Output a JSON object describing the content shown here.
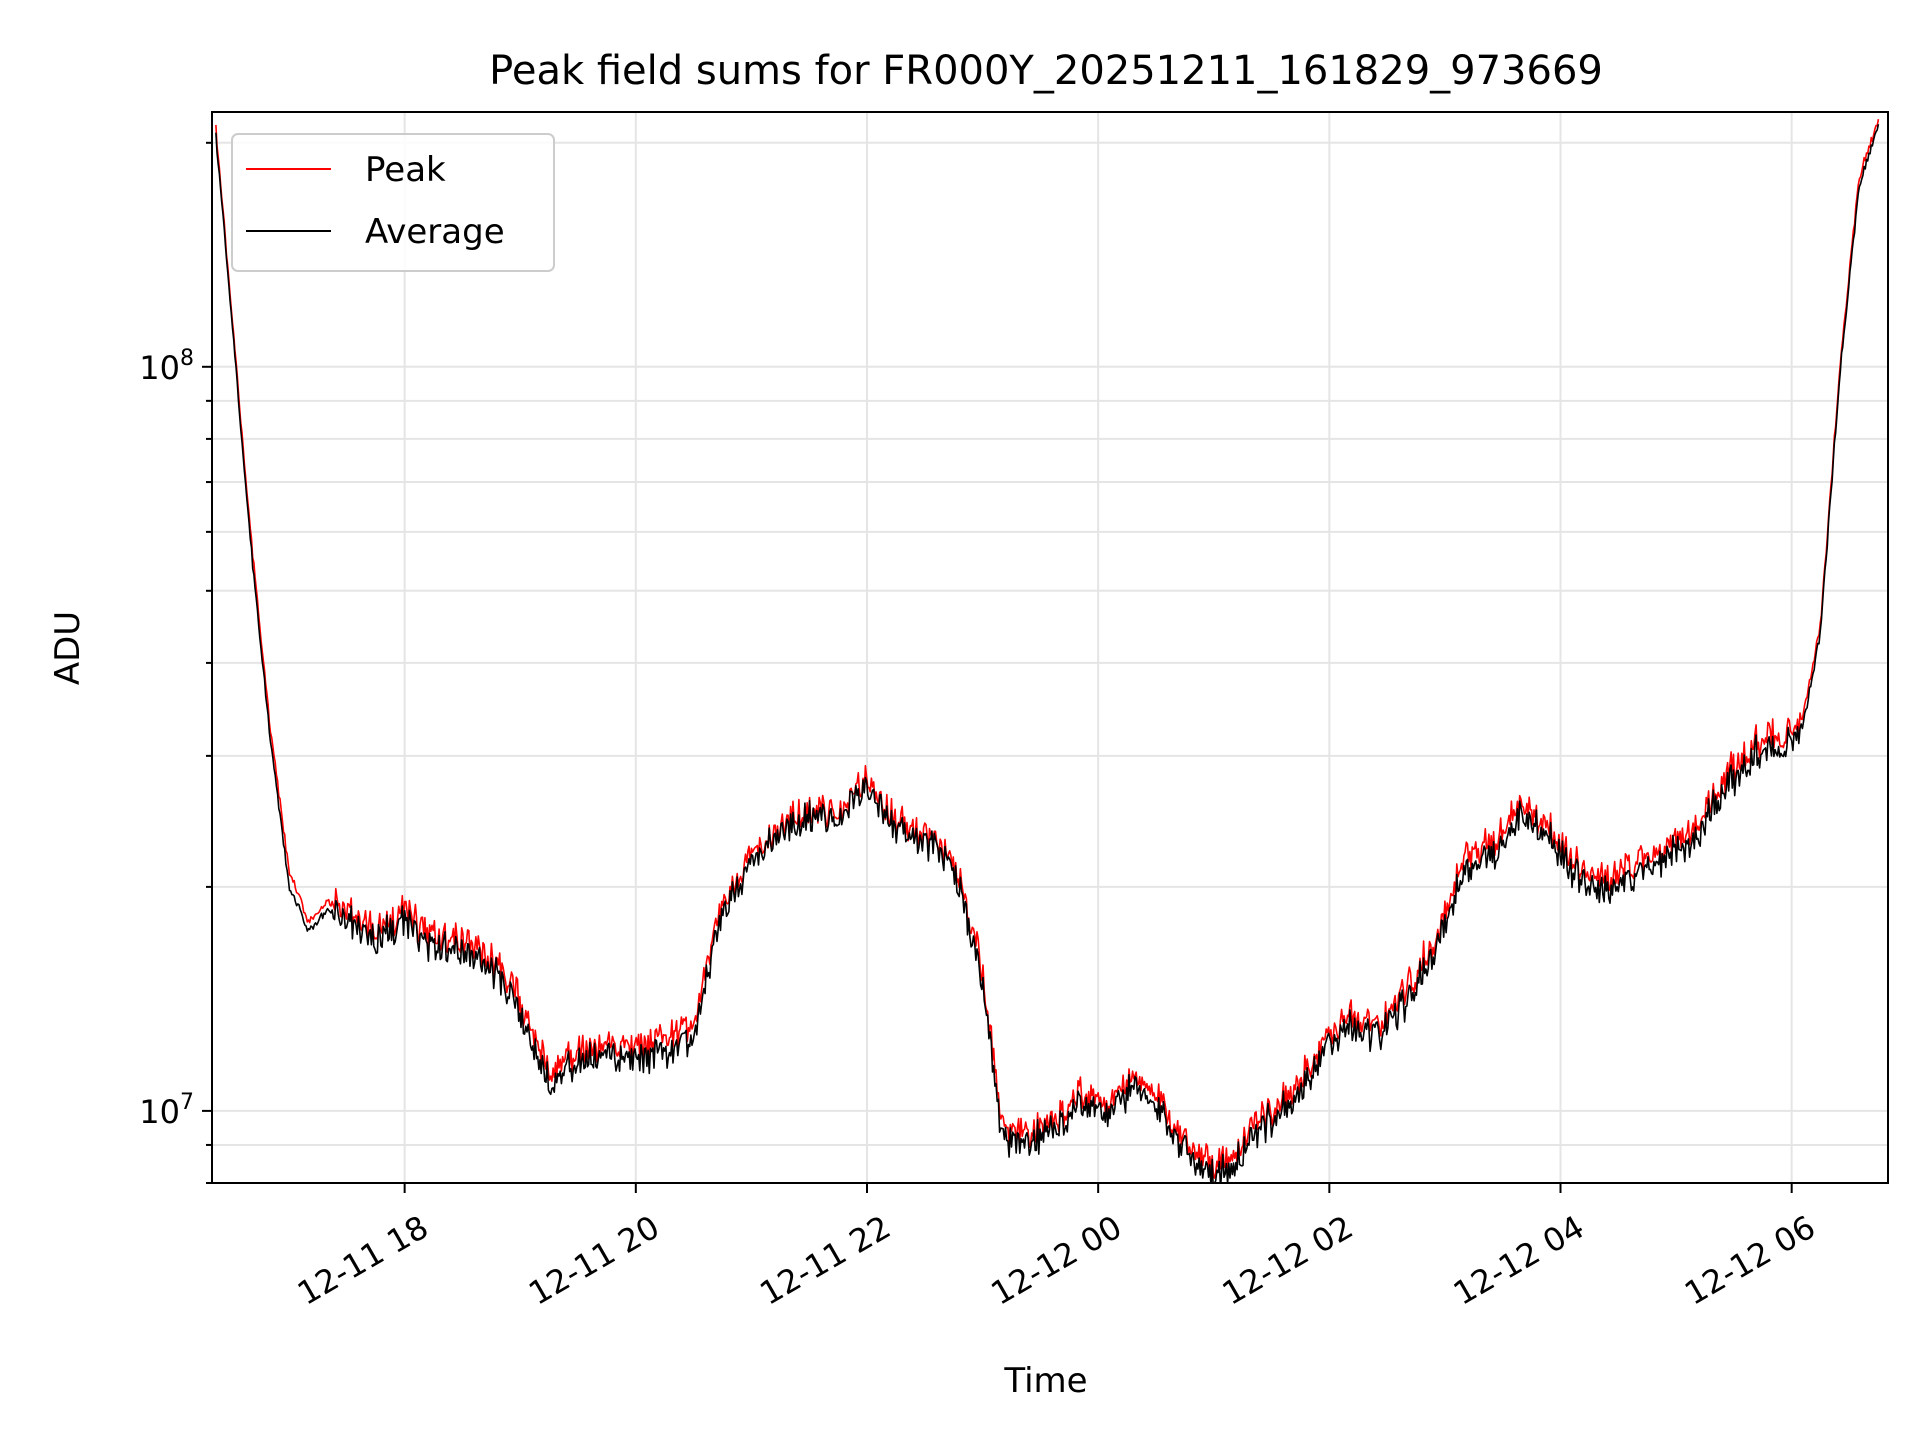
{
  "chart_data": {
    "type": "line",
    "title": "Peak field sums for FR000Y_20251211_161829_973669",
    "xlabel": "Time",
    "ylabel": "ADU",
    "yscale": "log",
    "grid": true,
    "legend_position": "upper-left",
    "xlim": [
      "2025-12-11 16:20",
      "2025-12-12 06:50"
    ],
    "ylim": [
      8000000,
      220000000
    ],
    "x_ticks": [
      "12-11 18",
      "12-11 20",
      "12-11 22",
      "12-12 00",
      "12-12 02",
      "12-12 04",
      "12-12 06"
    ],
    "y_ticks": [
      "10^7",
      "10^8"
    ],
    "series": [
      {
        "name": "Peak",
        "color": "#ff0000",
        "x": [
          "2025-12-11 16:22",
          "2025-12-11 16:30",
          "2025-12-11 16:40",
          "2025-12-11 16:50",
          "2025-12-11 17:00",
          "2025-12-11 17:10",
          "2025-12-11 17:20",
          "2025-12-11 17:30",
          "2025-12-11 17:45",
          "2025-12-11 18:00",
          "2025-12-11 18:15",
          "2025-12-11 18:30",
          "2025-12-11 18:45",
          "2025-12-11 19:00",
          "2025-12-11 19:15",
          "2025-12-11 19:30",
          "2025-12-11 19:45",
          "2025-12-11 20:00",
          "2025-12-11 20:15",
          "2025-12-11 20:30",
          "2025-12-11 20:45",
          "2025-12-11 21:00",
          "2025-12-11 21:15",
          "2025-12-11 21:30",
          "2025-12-11 21:45",
          "2025-12-11 22:00",
          "2025-12-11 22:15",
          "2025-12-11 22:30",
          "2025-12-11 22:45",
          "2025-12-11 23:00",
          "2025-12-11 23:10",
          "2025-12-11 23:20",
          "2025-12-11 23:35",
          "2025-12-11 23:50",
          "2025-12-12 00:05",
          "2025-12-12 00:20",
          "2025-12-12 00:35",
          "2025-12-12 00:50",
          "2025-12-12 01:00",
          "2025-12-12 01:10",
          "2025-12-12 01:25",
          "2025-12-12 01:40",
          "2025-12-12 01:55",
          "2025-12-12 02:10",
          "2025-12-12 02:25",
          "2025-12-12 02:40",
          "2025-12-12 02:55",
          "2025-12-12 03:10",
          "2025-12-12 03:25",
          "2025-12-12 03:40",
          "2025-12-12 03:55",
          "2025-12-12 04:10",
          "2025-12-12 04:25",
          "2025-12-12 04:40",
          "2025-12-12 04:55",
          "2025-12-12 05:10",
          "2025-12-12 05:25",
          "2025-12-12 05:40",
          "2025-12-12 05:55",
          "2025-12-12 06:05",
          "2025-12-12 06:15",
          "2025-12-12 06:25",
          "2025-12-12 06:35",
          "2025-12-12 06:45"
        ],
        "y": [
          210000000,
          120000000,
          60000000,
          33000000,
          21000000,
          18000000,
          19000000,
          18500000,
          17500000,
          18500000,
          17000000,
          17000000,
          16000000,
          14000000,
          11500000,
          12000000,
          12200000,
          12000000,
          12500000,
          13000000,
          19000000,
          22000000,
          24000000,
          25500000,
          25000000,
          28000000,
          24500000,
          23500000,
          22000000,
          15500000,
          9500000,
          9300000,
          9600000,
          10600000,
          10200000,
          11200000,
          10000000,
          8900000,
          8500000,
          8800000,
          9800000,
          10500000,
          12000000,
          13500000,
          13000000,
          14500000,
          17000000,
          22000000,
          23000000,
          26000000,
          24000000,
          21000000,
          20500000,
          21500000,
          22500000,
          24000000,
          28000000,
          31000000,
          32000000,
          33000000,
          45000000,
          100000000,
          180000000,
          215000000
        ]
      },
      {
        "name": "Average",
        "color": "#000000",
        "x": [
          "2025-12-11 16:22",
          "2025-12-11 16:30",
          "2025-12-11 16:40",
          "2025-12-11 16:50",
          "2025-12-11 17:00",
          "2025-12-11 17:10",
          "2025-12-11 17:20",
          "2025-12-11 17:30",
          "2025-12-11 17:45",
          "2025-12-11 18:00",
          "2025-12-11 18:15",
          "2025-12-11 18:30",
          "2025-12-11 18:45",
          "2025-12-11 19:00",
          "2025-12-11 19:15",
          "2025-12-11 19:30",
          "2025-12-11 19:45",
          "2025-12-11 20:00",
          "2025-12-11 20:15",
          "2025-12-11 20:30",
          "2025-12-11 20:45",
          "2025-12-11 21:00",
          "2025-12-11 21:15",
          "2025-12-11 21:30",
          "2025-12-11 21:45",
          "2025-12-11 22:00",
          "2025-12-11 22:15",
          "2025-12-11 22:30",
          "2025-12-11 22:45",
          "2025-12-11 23:00",
          "2025-12-11 23:10",
          "2025-12-11 23:20",
          "2025-12-11 23:35",
          "2025-12-11 23:50",
          "2025-12-12 00:05",
          "2025-12-12 00:20",
          "2025-12-12 00:35",
          "2025-12-12 00:50",
          "2025-12-12 01:00",
          "2025-12-12 01:10",
          "2025-12-12 01:25",
          "2025-12-12 01:40",
          "2025-12-12 01:55",
          "2025-12-12 02:10",
          "2025-12-12 02:25",
          "2025-12-12 02:40",
          "2025-12-12 02:55",
          "2025-12-12 03:10",
          "2025-12-12 03:25",
          "2025-12-12 03:40",
          "2025-12-12 03:55",
          "2025-12-12 04:10",
          "2025-12-12 04:25",
          "2025-12-12 04:40",
          "2025-12-12 04:55",
          "2025-12-12 05:10",
          "2025-12-12 05:25",
          "2025-12-12 05:40",
          "2025-12-12 05:55",
          "2025-12-12 06:05",
          "2025-12-12 06:15",
          "2025-12-12 06:25",
          "2025-12-12 06:35",
          "2025-12-12 06:45"
        ],
        "y": [
          205000000,
          118000000,
          58000000,
          32000000,
          20000000,
          17500000,
          18500000,
          18000000,
          17000000,
          18000000,
          16500000,
          16500000,
          15500000,
          13500000,
          11000000,
          11600000,
          11800000,
          11600000,
          12000000,
          12500000,
          18500000,
          21500000,
          23500000,
          25000000,
          24500000,
          27500000,
          24000000,
          23000000,
          21500000,
          15000000,
          9200000,
          9000000,
          9300000,
          10300000,
          9900000,
          10900000,
          9700000,
          8600000,
          8200000,
          8500000,
          9500000,
          10200000,
          11600000,
          13000000,
          12600000,
          14000000,
          16500000,
          21000000,
          22200000,
          25000000,
          23200000,
          20200000,
          19800000,
          20800000,
          21800000,
          23200000,
          27000000,
          30000000,
          31000000,
          32000000,
          44000000,
          98000000,
          175000000,
          212000000
        ]
      }
    ]
  }
}
